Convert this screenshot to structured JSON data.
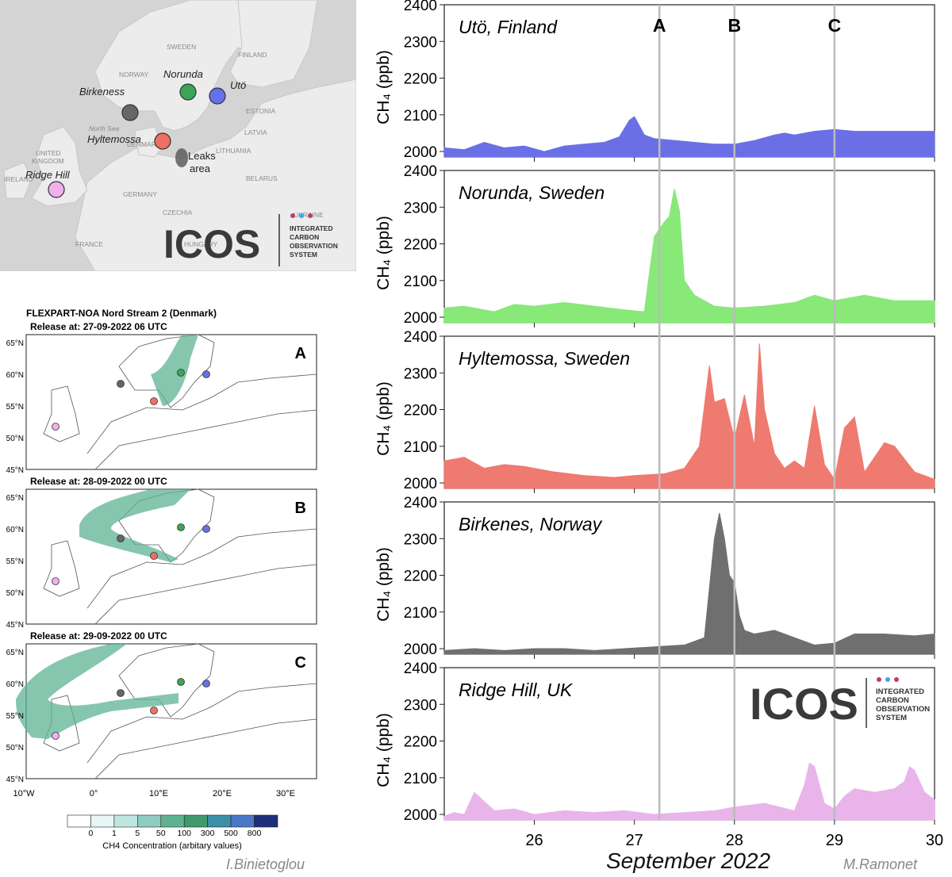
{
  "map": {
    "countries": [
      "SWEDEN",
      "FINLAND",
      "NORWAY",
      "ESTONIA",
      "LATVIA",
      "LITHUANIA",
      "DENMARK",
      "North Sea",
      "UNITED",
      "KINGDOM",
      "IRELAND",
      "GERMANY",
      "BELARUS",
      "CZECHIA",
      "FRANCE",
      "UKRAINE",
      "HUNGARY"
    ],
    "stations": [
      {
        "name": "Norunda",
        "color": "#3aa655"
      },
      {
        "name": "Utö",
        "color": "#6670e8"
      },
      {
        "name": "Birkeness",
        "color": "#666666"
      },
      {
        "name": "Hyltemossa",
        "color": "#ef6f62"
      },
      {
        "name": "Ridge Hill",
        "color": "#f0b0ee"
      }
    ],
    "leaks_label_1": "Leaks",
    "leaks_label_2": "area",
    "logo_text": "ICOS",
    "logo_sub": [
      "INTEGRATED",
      "CARBON",
      "OBSERVATION",
      "SYSTEM"
    ]
  },
  "flexpart": {
    "title": "FLEXPART-NOA Nord Stream 2 (Denmark)",
    "panels": [
      {
        "release": "Release at: 27-09-2022 06 UTC",
        "letter": "A"
      },
      {
        "release": "Release at: 28-09-2022 00 UTC",
        "letter": "B"
      },
      {
        "release": "Release at: 29-09-2022 00 UTC",
        "letter": "C"
      }
    ],
    "lat_labels": [
      "65°N",
      "60°N",
      "55°N",
      "50°N",
      "45°N"
    ],
    "lon_labels": [
      "10°W",
      "0°",
      "10°E",
      "20°E",
      "30°E"
    ],
    "colorbar": {
      "ticks": [
        "0",
        "1",
        "5",
        "50",
        "100",
        "300",
        "500",
        "800"
      ],
      "colors": [
        "#ffffff",
        "#e8f7f6",
        "#bfe6e1",
        "#8ecdbf",
        "#5eb393",
        "#3f9a6e",
        "#3d8fa8",
        "#4a78c8",
        "#1e2f7a"
      ],
      "label": "CH4 Concentration (arbitary values)"
    }
  },
  "chart_data": {
    "type": "area",
    "xlabel": "September 2022",
    "ylabel": "CH₄ (ppb)",
    "x_ticks": [
      26,
      27,
      28,
      29,
      30
    ],
    "xlim": [
      25.1,
      30.0
    ],
    "ylim": [
      1985,
      2400
    ],
    "y_ticks": [
      2000,
      2100,
      2200,
      2300,
      2400
    ],
    "event_lines": [
      {
        "label": "A",
        "x": 27.25
      },
      {
        "label": "B",
        "x": 28.0
      },
      {
        "label": "C",
        "x": 29.0
      }
    ],
    "series": [
      {
        "name": "Utö, Finland",
        "color": "#6b6fe6",
        "x": [
          25.1,
          25.3,
          25.5,
          25.7,
          25.9,
          26.1,
          26.3,
          26.5,
          26.7,
          26.85,
          26.95,
          27.0,
          27.05,
          27.1,
          27.2,
          27.4,
          27.6,
          27.8,
          28.0,
          28.2,
          28.4,
          28.5,
          28.6,
          28.8,
          29.0,
          29.2,
          29.5,
          30.0
        ],
        "values": [
          2010,
          2005,
          2025,
          2010,
          2015,
          2000,
          2015,
          2020,
          2025,
          2040,
          2085,
          2095,
          2070,
          2045,
          2035,
          2030,
          2025,
          2020,
          2020,
          2030,
          2045,
          2050,
          2045,
          2055,
          2060,
          2055,
          2055,
          2055
        ]
      },
      {
        "name": "Norunda, Sweden",
        "color": "#88e878",
        "x": [
          25.1,
          25.3,
          25.6,
          25.8,
          26.0,
          26.3,
          26.6,
          26.9,
          27.1,
          27.15,
          27.2,
          27.25,
          27.3,
          27.35,
          27.4,
          27.45,
          27.5,
          27.6,
          27.8,
          28.0,
          28.3,
          28.6,
          28.8,
          29.0,
          29.3,
          29.6,
          30.0
        ],
        "values": [
          2025,
          2030,
          2015,
          2035,
          2030,
          2040,
          2030,
          2020,
          2015,
          2120,
          2220,
          2240,
          2260,
          2275,
          2350,
          2290,
          2100,
          2060,
          2030,
          2025,
          2030,
          2040,
          2060,
          2045,
          2060,
          2045,
          2045
        ]
      },
      {
        "name": "Hyltemossa, Sweden",
        "color": "#ee7a70",
        "x": [
          25.1,
          25.3,
          25.5,
          25.7,
          25.9,
          26.2,
          26.5,
          26.8,
          27.0,
          27.3,
          27.5,
          27.65,
          27.75,
          27.8,
          27.9,
          28.0,
          28.1,
          28.2,
          28.25,
          28.3,
          28.4,
          28.5,
          28.6,
          28.7,
          28.8,
          28.9,
          29.0,
          29.1,
          29.2,
          29.3,
          29.5,
          29.6,
          29.8,
          30.0
        ],
        "values": [
          2060,
          2070,
          2040,
          2050,
          2045,
          2030,
          2020,
          2015,
          2020,
          2025,
          2040,
          2100,
          2320,
          2220,
          2230,
          2120,
          2240,
          2100,
          2380,
          2200,
          2080,
          2040,
          2060,
          2040,
          2210,
          2050,
          2010,
          2150,
          2180,
          2030,
          2110,
          2100,
          2030,
          2010
        ]
      },
      {
        "name": "Birkenes, Norway",
        "color": "#6f6f6f",
        "x": [
          25.1,
          25.4,
          25.7,
          26.0,
          26.3,
          26.6,
          26.9,
          27.2,
          27.5,
          27.7,
          27.8,
          27.85,
          27.9,
          27.95,
          28.0,
          28.05,
          28.1,
          28.2,
          28.4,
          28.6,
          28.8,
          29.0,
          29.2,
          29.5,
          29.8,
          30.0
        ],
        "values": [
          1995,
          2000,
          1995,
          2000,
          2000,
          1995,
          2000,
          2005,
          2010,
          2030,
          2300,
          2370,
          2300,
          2200,
          2180,
          2090,
          2050,
          2040,
          2050,
          2030,
          2010,
          2015,
          2040,
          2040,
          2035,
          2040
        ]
      },
      {
        "name": "Ridge Hill, UK",
        "color": "#e8b4ea",
        "x": [
          25.1,
          25.2,
          25.3,
          25.4,
          25.6,
          25.8,
          26.0,
          26.3,
          26.6,
          26.9,
          27.2,
          27.5,
          27.8,
          28.0,
          28.3,
          28.6,
          28.7,
          28.75,
          28.8,
          28.9,
          29.0,
          29.1,
          29.2,
          29.4,
          29.6,
          29.7,
          29.75,
          29.8,
          29.9,
          30.0
        ],
        "values": [
          1995,
          2005,
          2000,
          2060,
          2010,
          2015,
          2000,
          2010,
          2005,
          2010,
          2000,
          2005,
          2010,
          2020,
          2030,
          2010,
          2080,
          2140,
          2130,
          2030,
          2015,
          2050,
          2070,
          2060,
          2070,
          2090,
          2130,
          2120,
          2060,
          2040
        ]
      }
    ]
  },
  "chart_logo": {
    "text": "ICOS",
    "sub": [
      "INTEGRATED",
      "CARBON",
      "OBSERVATION",
      "SYSTEM"
    ]
  },
  "credits": {
    "left": "I.Binietoglou",
    "right": "M.Ramonet"
  }
}
